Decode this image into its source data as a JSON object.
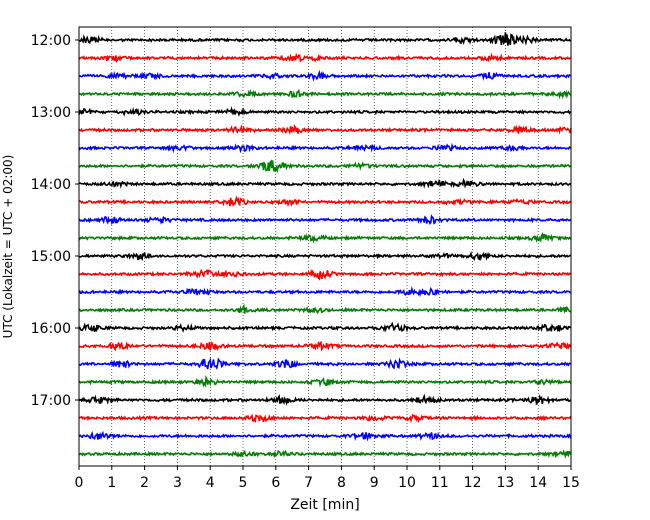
{
  "chart_data": {
    "type": "line",
    "title": "",
    "xlabel": "Zeit  [min]",
    "ylabel": "UTC (Lokalzeit = UTC + 02:00)",
    "xlim": [
      0,
      15
    ],
    "x_ticks": [
      0,
      1,
      2,
      3,
      4,
      5,
      6,
      7,
      8,
      9,
      10,
      11,
      12,
      13,
      14,
      15
    ],
    "y_tick_labels": [
      "12:00",
      "13:00",
      "14:00",
      "15:00",
      "16:00",
      "17:00"
    ],
    "grid": "vertical dotted",
    "colors": [
      "#000000",
      "#ff0000",
      "#0000ff",
      "#008000"
    ],
    "trace_times": [
      "12:00",
      "12:15",
      "12:30",
      "12:45",
      "13:00",
      "13:15",
      "13:30",
      "13:45",
      "14:00",
      "14:15",
      "14:30",
      "14:45",
      "15:00",
      "15:15",
      "15:30",
      "15:45",
      "16:00",
      "16:15",
      "16:30",
      "16:45",
      "17:00",
      "17:15",
      "17:30",
      "17:45"
    ],
    "events": [
      [
        [
          0.3,
          0.5
        ],
        [
          11.7,
          0.5
        ],
        [
          13.0,
          1.0
        ],
        [
          13.6,
          0.4
        ]
      ],
      [
        [
          1.0,
          0.4
        ],
        [
          6.5,
          0.5
        ],
        [
          7.1,
          0.4
        ],
        [
          12.6,
          0.3
        ]
      ],
      [
        [
          1.2,
          0.3
        ],
        [
          2.2,
          0.3
        ],
        [
          5.8,
          0.3
        ],
        [
          7.3,
          0.4
        ],
        [
          12.5,
          0.4
        ]
      ],
      [
        [
          5.1,
          0.4
        ],
        [
          6.6,
          0.4
        ],
        [
          14.8,
          0.3
        ]
      ],
      [
        [
          0.1,
          0.4
        ],
        [
          1.6,
          0.4
        ],
        [
          4.7,
          0.3
        ]
      ],
      [
        [
          4.9,
          0.5
        ],
        [
          6.5,
          0.5
        ],
        [
          13.4,
          0.4
        ],
        [
          14.9,
          0.4
        ]
      ],
      [
        [
          3.1,
          0.3
        ],
        [
          5.0,
          0.4
        ],
        [
          8.7,
          0.3
        ],
        [
          11.2,
          0.3
        ],
        [
          13.2,
          0.3
        ]
      ],
      [
        [
          5.7,
          0.5
        ],
        [
          6.0,
          0.5
        ],
        [
          8.6,
          0.3
        ]
      ],
      [
        [
          1.1,
          0.3
        ],
        [
          10.9,
          0.4
        ],
        [
          11.8,
          0.4
        ]
      ],
      [
        [
          4.7,
          0.6
        ],
        [
          6.4,
          0.3
        ],
        [
          11.5,
          0.3
        ],
        [
          13.5,
          0.3
        ]
      ],
      [
        [
          1.0,
          0.5
        ],
        [
          2.4,
          0.4
        ],
        [
          10.7,
          0.5
        ]
      ],
      [
        [
          7.2,
          0.4
        ],
        [
          14.1,
          0.5
        ]
      ],
      [
        [
          1.9,
          0.5
        ],
        [
          11.1,
          0.3
        ],
        [
          12.2,
          0.5
        ]
      ],
      [
        [
          3.8,
          0.6
        ],
        [
          4.6,
          0.4
        ],
        [
          7.4,
          0.6
        ]
      ],
      [
        [
          3.6,
          0.4
        ],
        [
          10.1,
          0.4
        ],
        [
          10.7,
          0.4
        ]
      ],
      [
        [
          5.0,
          0.4
        ],
        [
          7.2,
          0.3
        ],
        [
          14.9,
          0.3
        ]
      ],
      [
        [
          0.4,
          0.5
        ],
        [
          3.2,
          0.3
        ],
        [
          9.6,
          0.6
        ],
        [
          14.4,
          0.6
        ]
      ],
      [
        [
          1.2,
          0.4
        ],
        [
          4.0,
          0.5
        ],
        [
          7.4,
          0.4
        ],
        [
          14.6,
          0.4
        ]
      ],
      [
        [
          1.3,
          0.5
        ],
        [
          4.0,
          1.0
        ],
        [
          6.3,
          0.6
        ],
        [
          9.7,
          0.6
        ]
      ],
      [
        [
          3.9,
          0.5
        ],
        [
          7.5,
          0.4
        ],
        [
          14.1,
          0.3
        ]
      ],
      [
        [
          0.6,
          0.4
        ],
        [
          6.2,
          0.5
        ],
        [
          10.6,
          0.5
        ],
        [
          14.0,
          0.6
        ]
      ],
      [
        [
          5.5,
          0.5
        ],
        [
          9.0,
          0.3
        ],
        [
          10.2,
          0.3
        ]
      ],
      [
        [
          0.6,
          0.5
        ],
        [
          8.7,
          0.5
        ],
        [
          10.7,
          0.4
        ]
      ],
      [
        [
          5.1,
          0.3
        ],
        [
          6.2,
          0.3
        ],
        [
          14.8,
          0.3
        ]
      ]
    ]
  }
}
